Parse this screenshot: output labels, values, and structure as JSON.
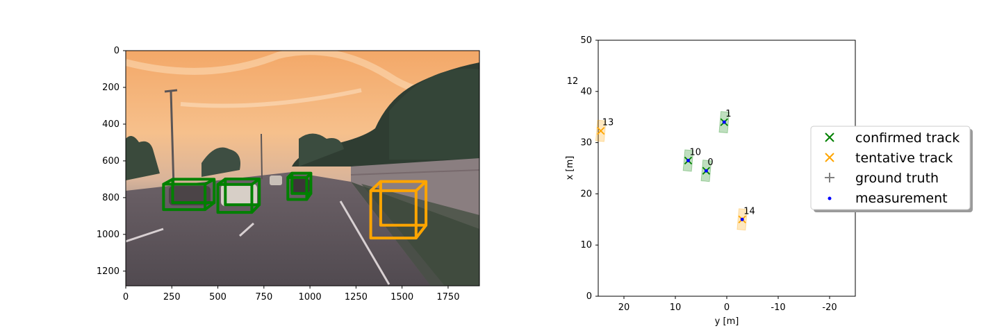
{
  "colors": {
    "confirmed": "#008000",
    "tentative": "#FFA500",
    "ground_truth": "#808080",
    "measurement": "#0000FF"
  },
  "chart_data": [
    {
      "type": "image",
      "xlim": [
        0,
        1920
      ],
      "ylim": [
        1280,
        0
      ],
      "x_ticks": [
        "0",
        "250",
        "500",
        "750",
        "1000",
        "1250",
        "1500",
        "1750"
      ],
      "y_ticks": [
        "0",
        "200",
        "400",
        "600",
        "800",
        "1000",
        "1200"
      ],
      "boxes": [
        {
          "color": "confirmed",
          "x": [
            205,
            480
          ],
          "y": [
            715,
            865
          ]
        },
        {
          "color": "confirmed",
          "x": [
            500,
            725
          ],
          "y": [
            715,
            880
          ]
        },
        {
          "color": "confirmed",
          "x": [
            880,
            1005
          ],
          "y": [
            680,
            810
          ]
        },
        {
          "color": "tentative",
          "x": [
            1330,
            1630
          ],
          "y": [
            740,
            1020
          ]
        }
      ]
    },
    {
      "type": "scatter",
      "xlabel": "y [m]",
      "ylabel": "x [m]",
      "xlim": [
        25,
        -25
      ],
      "ylim": [
        0,
        50
      ],
      "x_ticks": [
        20,
        10,
        0,
        -10,
        -20
      ],
      "x_tick_labels": [
        "20",
        "10",
        "0",
        "-10",
        "-20"
      ],
      "y_ticks": [
        0,
        10,
        20,
        30,
        40,
        50
      ],
      "y_tick_labels": [
        "0",
        "10",
        "20",
        "30",
        "40",
        "50"
      ],
      "tracks": [
        {
          "id": "1",
          "status": "confirmed",
          "y": 0.5,
          "x": 34.0
        },
        {
          "id": "10",
          "status": "confirmed",
          "y": 7.5,
          "x": 26.5
        },
        {
          "id": "0",
          "status": "confirmed",
          "y": 4.0,
          "x": 24.5
        },
        {
          "id": "13",
          "status": "tentative",
          "y": 24.5,
          "x": 32.3
        },
        {
          "id": "14",
          "status": "tentative",
          "y": -3.0,
          "x": 15.0
        }
      ],
      "orphan_labels": [
        {
          "id": "12",
          "y": 30.0,
          "x": 42.0
        }
      ],
      "measurements": [
        {
          "y": 0.5,
          "x": 34.0
        },
        {
          "y": 7.5,
          "x": 26.5
        },
        {
          "y": 4.0,
          "x": 24.5
        },
        {
          "y": -3.0,
          "x": 15.0
        }
      ],
      "legend": {
        "placement": "right",
        "entries": [
          {
            "label": "confirmed track",
            "marker": "x",
            "color": "confirmed"
          },
          {
            "label": "tentative track",
            "marker": "x",
            "color": "tentative"
          },
          {
            "label": "ground truth",
            "marker": "+",
            "color": "ground_truth"
          },
          {
            "label": "measurement",
            "marker": "dot",
            "color": "measurement"
          }
        ]
      }
    }
  ]
}
